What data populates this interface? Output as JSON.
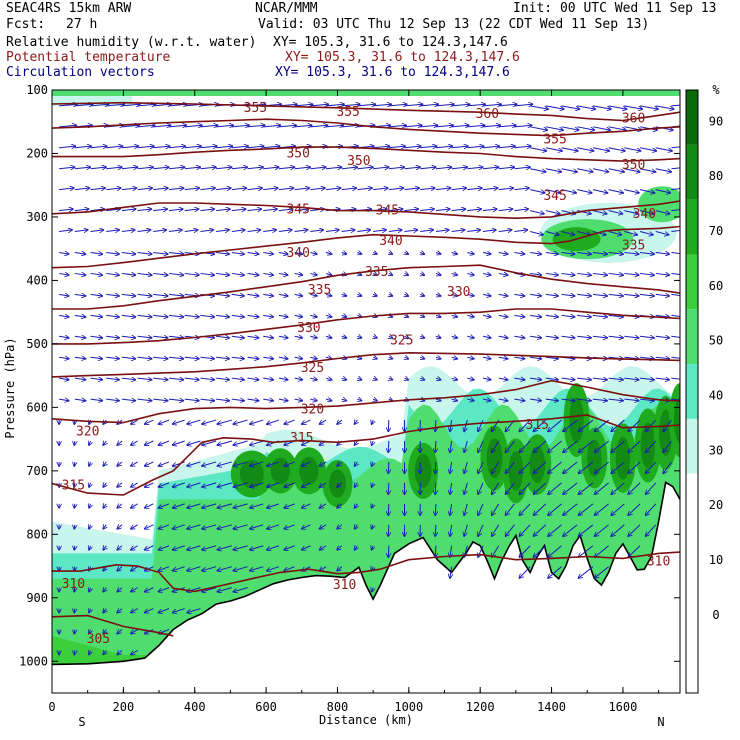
{
  "header": {
    "model": "SEAC4RS 15km ARW",
    "center": "NCAR/MMM",
    "init": "Init: 00 UTC Wed 11 Sep 13",
    "fcst_label": "Fcst:",
    "fcst_value": "27 h",
    "valid": "Valid: 03 UTC Thu 12 Sep 13 (22 CDT Wed 11 Sep 13)",
    "field1": "Relative humidity (w.r.t. water)",
    "field1_xy": "XY= 105.3, 31.6 to 124.3,147.6",
    "field2": "Potential temperature",
    "field2_xy": "XY= 105.3, 31.6 to 124.3,147.6",
    "field3": "Circulation vectors",
    "field3_xy": "XY= 105.3, 31.6 to 124.3,147.6"
  },
  "colors": {
    "field1": "#000000",
    "field2": "#8b1a1a",
    "field3": "#000080",
    "vectors": "#1a1ab8",
    "theta_lines": "#7a1010"
  },
  "chart_data": {
    "type": "cross-section",
    "xlabel": "Distance (km)",
    "ylabel": "Pressure (hPa)",
    "x_ticks": [
      0,
      200,
      400,
      600,
      800,
      1000,
      1200,
      1400,
      1600
    ],
    "y_ticks": [
      100,
      200,
      300,
      400,
      500,
      600,
      700,
      800,
      900,
      1000
    ],
    "xlim": [
      0,
      1760
    ],
    "ylim": [
      100,
      1050
    ],
    "y_scale": "linear-inverted",
    "left_end_label": "S",
    "right_end_label": "N",
    "colorbar": {
      "unit": "%",
      "labels": [
        "0",
        "10",
        "20",
        "30",
        "40",
        "50",
        "60",
        "70",
        "80",
        "90"
      ],
      "colors": [
        "#ffffff",
        "#ffffff",
        "#ffffff",
        "#ffffff",
        "#c8f5ec",
        "#5ce8c4",
        "#50dd70",
        "#3ccf3c",
        "#1faa1f",
        "#138a13",
        "#0b6b0b"
      ]
    },
    "theta_contours": [
      {
        "value": 305,
        "points": [
          [
            0,
            930
          ],
          [
            100,
            928
          ],
          [
            200,
            945
          ],
          [
            300,
            955
          ],
          [
            340,
            960
          ]
        ]
      },
      {
        "value": 310,
        "points": [
          [
            0,
            858
          ],
          [
            80,
            858
          ],
          [
            180,
            848
          ],
          [
            240,
            850
          ],
          [
            300,
            860
          ],
          [
            340,
            885
          ],
          [
            400,
            890
          ],
          [
            480,
            880
          ],
          [
            560,
            870
          ],
          [
            640,
            860
          ],
          [
            720,
            855
          ],
          [
            800,
            862
          ],
          [
            860,
            860
          ],
          [
            920,
            855
          ],
          [
            1000,
            840
          ],
          [
            1100,
            835
          ],
          [
            1200,
            832
          ],
          [
            1300,
            840
          ],
          [
            1400,
            838
          ],
          [
            1500,
            835
          ],
          [
            1600,
            838
          ],
          [
            1700,
            830
          ],
          [
            1760,
            828
          ]
        ]
      },
      {
        "value": 315,
        "points": [
          [
            0,
            720
          ],
          [
            100,
            735
          ],
          [
            200,
            738
          ],
          [
            280,
            715
          ],
          [
            340,
            700
          ],
          [
            420,
            655
          ],
          [
            480,
            648
          ],
          [
            560,
            650
          ],
          [
            620,
            655
          ],
          [
            700,
            652
          ],
          [
            800,
            655
          ],
          [
            900,
            650
          ],
          [
            1000,
            638
          ],
          [
            1100,
            630
          ],
          [
            1200,
            625
          ],
          [
            1300,
            622
          ],
          [
            1400,
            618
          ],
          [
            1500,
            612
          ],
          [
            1600,
            632
          ],
          [
            1700,
            630
          ],
          [
            1760,
            628
          ]
        ]
      },
      {
        "value": 320,
        "points": [
          [
            0,
            618
          ],
          [
            100,
            622
          ],
          [
            200,
            624
          ],
          [
            300,
            610
          ],
          [
            400,
            602
          ],
          [
            500,
            600
          ],
          [
            600,
            602
          ],
          [
            700,
            600
          ],
          [
            800,
            598
          ],
          [
            900,
            593
          ],
          [
            1000,
            588
          ],
          [
            1100,
            585
          ],
          [
            1200,
            580
          ],
          [
            1300,
            572
          ],
          [
            1400,
            558
          ],
          [
            1500,
            568
          ],
          [
            1600,
            580
          ],
          [
            1700,
            588
          ],
          [
            1760,
            590
          ]
        ]
      },
      {
        "value": 325,
        "points": [
          [
            0,
            552
          ],
          [
            100,
            550
          ],
          [
            200,
            548
          ],
          [
            300,
            546
          ],
          [
            400,
            544
          ],
          [
            500,
            540
          ],
          [
            600,
            536
          ],
          [
            700,
            530
          ],
          [
            800,
            523
          ],
          [
            900,
            517
          ],
          [
            1000,
            514
          ],
          [
            1100,
            515
          ],
          [
            1200,
            516
          ],
          [
            1300,
            518
          ],
          [
            1400,
            520
          ],
          [
            1500,
            522
          ],
          [
            1600,
            524
          ],
          [
            1700,
            525
          ],
          [
            1760,
            526
          ]
        ]
      },
      {
        "value": 330,
        "points": [
          [
            0,
            500
          ],
          [
            100,
            500
          ],
          [
            200,
            498
          ],
          [
            300,
            495
          ],
          [
            400,
            490
          ],
          [
            500,
            484
          ],
          [
            600,
            477
          ],
          [
            700,
            470
          ],
          [
            800,
            462
          ],
          [
            900,
            456
          ],
          [
            1000,
            452
          ],
          [
            1100,
            452
          ],
          [
            1200,
            450
          ],
          [
            1300,
            445
          ],
          [
            1400,
            445
          ],
          [
            1500,
            450
          ],
          [
            1600,
            455
          ],
          [
            1700,
            458
          ],
          [
            1760,
            460
          ]
        ]
      },
      {
        "value": 335,
        "points": [
          [
            0,
            445
          ],
          [
            100,
            445
          ],
          [
            200,
            440
          ],
          [
            300,
            432
          ],
          [
            400,
            425
          ],
          [
            500,
            418
          ],
          [
            600,
            410
          ],
          [
            700,
            402
          ],
          [
            800,
            392
          ],
          [
            900,
            385
          ],
          [
            1000,
            380
          ],
          [
            1100,
            378
          ],
          [
            1200,
            376
          ],
          [
            1300,
            388
          ],
          [
            1400,
            398
          ],
          [
            1500,
            405
          ],
          [
            1600,
            410
          ],
          [
            1700,
            415
          ],
          [
            1760,
            420
          ]
        ]
      },
      {
        "value": 340,
        "points": [
          [
            0,
            380
          ],
          [
            100,
            378
          ],
          [
            200,
            372
          ],
          [
            300,
            365
          ],
          [
            400,
            358
          ],
          [
            500,
            352
          ],
          [
            600,
            346
          ],
          [
            700,
            340
          ],
          [
            800,
            333
          ],
          [
            900,
            328
          ],
          [
            1000,
            330
          ],
          [
            1100,
            332
          ],
          [
            1200,
            335
          ],
          [
            1300,
            340
          ],
          [
            1400,
            342
          ],
          [
            1450,
            338
          ],
          [
            1500,
            330
          ],
          [
            1550,
            322
          ],
          [
            1600,
            320
          ],
          [
            1700,
            318
          ],
          [
            1760,
            315
          ]
        ]
      },
      {
        "value": 345,
        "points": [
          [
            0,
            295
          ],
          [
            100,
            292
          ],
          [
            200,
            285
          ],
          [
            300,
            278
          ],
          [
            400,
            278
          ],
          [
            500,
            280
          ],
          [
            600,
            282
          ],
          [
            700,
            285
          ],
          [
            800,
            290
          ],
          [
            900,
            290
          ],
          [
            1000,
            292
          ],
          [
            1100,
            296
          ],
          [
            1200,
            300
          ],
          [
            1300,
            302
          ],
          [
            1400,
            300
          ],
          [
            1500,
            290
          ],
          [
            1600,
            285
          ],
          [
            1700,
            280
          ],
          [
            1760,
            275
          ]
        ]
      },
      {
        "value": 350,
        "points": [
          [
            0,
            205
          ],
          [
            100,
            205
          ],
          [
            200,
            205
          ],
          [
            300,
            202
          ],
          [
            400,
            198
          ],
          [
            500,
            195
          ],
          [
            600,
            193
          ],
          [
            700,
            190
          ],
          [
            800,
            190
          ],
          [
            900,
            192
          ],
          [
            1000,
            195
          ],
          [
            1100,
            198
          ],
          [
            1200,
            200
          ],
          [
            1300,
            205
          ],
          [
            1400,
            208
          ],
          [
            1500,
            210
          ],
          [
            1600,
            212
          ],
          [
            1700,
            210
          ],
          [
            1760,
            208
          ]
        ]
      },
      {
        "value": 355,
        "points": [
          [
            0,
            160
          ],
          [
            100,
            158
          ],
          [
            200,
            155
          ],
          [
            300,
            152
          ],
          [
            400,
            150
          ],
          [
            500,
            148
          ],
          [
            600,
            146
          ],
          [
            700,
            148
          ],
          [
            800,
            152
          ],
          [
            900,
            158
          ],
          [
            1000,
            162
          ],
          [
            1100,
            165
          ],
          [
            1200,
            168
          ],
          [
            1300,
            170
          ],
          [
            1400,
            172
          ],
          [
            1500,
            168
          ],
          [
            1600,
            165
          ],
          [
            1700,
            160
          ],
          [
            1760,
            158
          ]
        ]
      },
      {
        "value": 360,
        "points": [
          [
            0,
            122
          ],
          [
            200,
            120
          ],
          [
            400,
            122
          ],
          [
            600,
            125
          ],
          [
            800,
            128
          ],
          [
            1000,
            132
          ],
          [
            1200,
            135
          ],
          [
            1300,
            138
          ],
          [
            1400,
            140
          ],
          [
            1500,
            145
          ],
          [
            1600,
            148
          ],
          [
            1700,
            140
          ],
          [
            1760,
            135
          ]
        ]
      }
    ],
    "theta_label_positions": [
      {
        "text": "355",
        "x": 570,
        "p": 128
      },
      {
        "text": "355",
        "x": 830,
        "p": 135
      },
      {
        "text": "360",
        "x": 1220,
        "p": 138
      },
      {
        "text": "360",
        "x": 1630,
        "p": 145
      },
      {
        "text": "355",
        "x": 1410,
        "p": 178
      },
      {
        "text": "350",
        "x": 1630,
        "p": 218
      },
      {
        "text": "350",
        "x": 690,
        "p": 200
      },
      {
        "text": "350",
        "x": 860,
        "p": 212
      },
      {
        "text": "345",
        "x": 690,
        "p": 288
      },
      {
        "text": "345",
        "x": 940,
        "p": 290
      },
      {
        "text": "345",
        "x": 1410,
        "p": 267
      },
      {
        "text": "340",
        "x": 1660,
        "p": 295
      },
      {
        "text": "335",
        "x": 1630,
        "p": 345
      },
      {
        "text": "340",
        "x": 690,
        "p": 357
      },
      {
        "text": "340",
        "x": 950,
        "p": 338
      },
      {
        "text": "335",
        "x": 910,
        "p": 387
      },
      {
        "text": "335",
        "x": 750,
        "p": 415
      },
      {
        "text": "330",
        "x": 1140,
        "p": 418
      },
      {
        "text": "330",
        "x": 720,
        "p": 475
      },
      {
        "text": "325",
        "x": 730,
        "p": 538
      },
      {
        "text": "325",
        "x": 980,
        "p": 495
      },
      {
        "text": "320",
        "x": 730,
        "p": 603
      },
      {
        "text": "320",
        "x": 100,
        "p": 638
      },
      {
        "text": "315",
        "x": 700,
        "p": 648
      },
      {
        "text": "315",
        "x": 1360,
        "p": 628
      },
      {
        "text": "315",
        "x": 60,
        "p": 723
      },
      {
        "text": "310",
        "x": 60,
        "p": 878
      },
      {
        "text": "310",
        "x": 820,
        "p": 880
      },
      {
        "text": "310",
        "x": 1700,
        "p": 843
      },
      {
        "text": "305",
        "x": 130,
        "p": 965
      }
    ],
    "terrain_surface_hPa": [
      [
        0,
        1005
      ],
      [
        100,
        1004
      ],
      [
        200,
        1000
      ],
      [
        260,
        995
      ],
      [
        300,
        975
      ],
      [
        340,
        950
      ],
      [
        380,
        935
      ],
      [
        420,
        925
      ],
      [
        460,
        910
      ],
      [
        500,
        905
      ],
      [
        540,
        898
      ],
      [
        580,
        888
      ],
      [
        620,
        878
      ],
      [
        660,
        872
      ],
      [
        700,
        868
      ],
      [
        740,
        865
      ],
      [
        780,
        866
      ],
      [
        820,
        868
      ],
      [
        860,
        852
      ],
      [
        880,
        880
      ],
      [
        900,
        902
      ],
      [
        920,
        880
      ],
      [
        960,
        830
      ],
      [
        1000,
        815
      ],
      [
        1040,
        805
      ],
      [
        1080,
        840
      ],
      [
        1120,
        860
      ],
      [
        1160,
        830
      ],
      [
        1180,
        812
      ],
      [
        1200,
        818
      ],
      [
        1220,
        842
      ],
      [
        1240,
        870
      ],
      [
        1260,
        842
      ],
      [
        1280,
        820
      ],
      [
        1300,
        802
      ],
      [
        1320,
        842
      ],
      [
        1340,
        860
      ],
      [
        1360,
        835
      ],
      [
        1380,
        818
      ],
      [
        1400,
        860
      ],
      [
        1420,
        870
      ],
      [
        1440,
        850
      ],
      [
        1460,
        818
      ],
      [
        1480,
        802
      ],
      [
        1500,
        838
      ],
      [
        1520,
        870
      ],
      [
        1540,
        880
      ],
      [
        1560,
        860
      ],
      [
        1580,
        830
      ],
      [
        1600,
        815
      ],
      [
        1620,
        835
      ],
      [
        1640,
        856
      ],
      [
        1660,
        855
      ],
      [
        1680,
        835
      ],
      [
        1700,
        780
      ],
      [
        1720,
        718
      ],
      [
        1740,
        725
      ],
      [
        1760,
        745
      ]
    ]
  }
}
